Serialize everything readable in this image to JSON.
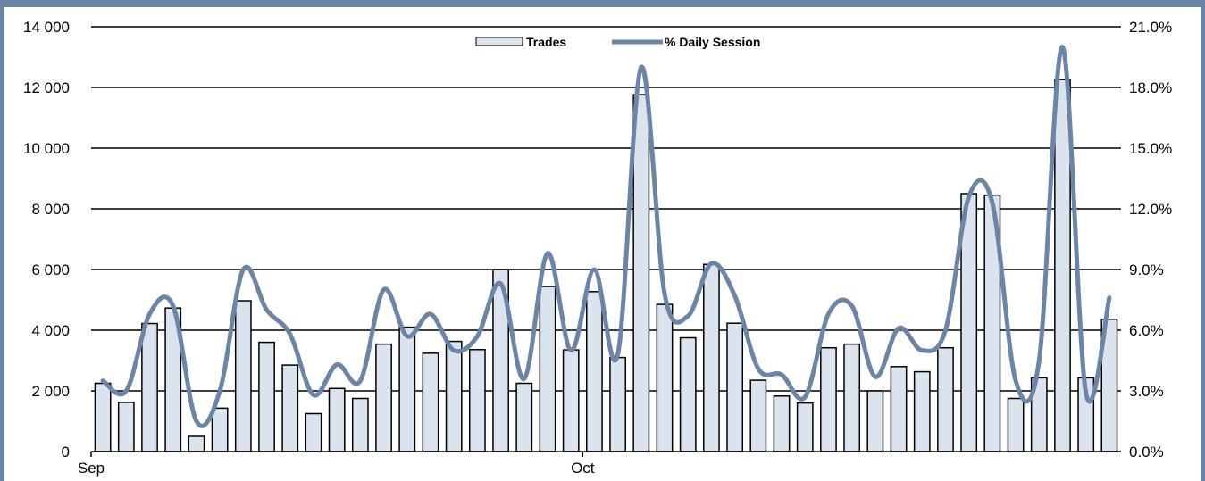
{
  "chart_data": {
    "type": "bar",
    "title": "",
    "xlabel": "",
    "ylabel": "",
    "x_tick_labels": [
      "Sep",
      "Oct"
    ],
    "x_tick_index": [
      0,
      21
    ],
    "ylim": [
      0,
      14000
    ],
    "y_ticks": [
      0,
      2000,
      4000,
      6000,
      8000,
      10000,
      12000,
      14000
    ],
    "y_tick_labels": [
      "0",
      "2 000",
      "4 000",
      "6 000",
      "8 000",
      "10 000",
      "12 000",
      "14 000"
    ],
    "y2lim": [
      0,
      21
    ],
    "y2_ticks": [
      0,
      3,
      6,
      9,
      12,
      15,
      18,
      21
    ],
    "y2_tick_labels": [
      "0.0%",
      "3.0%",
      "6.0%",
      "9.0%",
      "12.0%",
      "15.0%",
      "18.0%",
      "21.0%"
    ],
    "grid": true,
    "legend_position": "top-center",
    "colors": {
      "bar_fill": "#dbe4ee",
      "bar_stroke": "#000000",
      "line": "#6a85a8",
      "frame": "#6a85a8",
      "grid": "#000000"
    },
    "series": [
      {
        "name": "Trades",
        "kind": "bar",
        "axis": "left",
        "values": [
          2250,
          1620,
          4220,
          4730,
          500,
          1430,
          4970,
          3600,
          2850,
          1250,
          2080,
          1750,
          3540,
          4100,
          3240,
          3630,
          3360,
          6000,
          2250,
          5440,
          3350,
          5270,
          3100,
          11760,
          4850,
          3750,
          6170,
          4230,
          2350,
          1830,
          1600,
          3420,
          3540,
          2000,
          2800,
          2630,
          3420,
          8500,
          8450,
          1750,
          2430,
          12260,
          2430,
          4360
        ]
      },
      {
        "name": "% Daily Session",
        "kind": "line",
        "axis": "right",
        "values": [
          3.5,
          3.0,
          6.8,
          7.2,
          1.5,
          3.0,
          9.0,
          7.0,
          5.8,
          2.8,
          4.3,
          3.5,
          8.0,
          5.7,
          6.8,
          5.0,
          5.7,
          8.3,
          3.6,
          9.8,
          5.0,
          9.0,
          4.8,
          19.0,
          7.8,
          6.7,
          9.3,
          7.7,
          4.1,
          3.8,
          2.7,
          6.8,
          7.2,
          3.7,
          6.1,
          5.0,
          6.0,
          12.6,
          12.3,
          3.5,
          4.5,
          20.0,
          2.9,
          7.6
        ]
      }
    ]
  }
}
